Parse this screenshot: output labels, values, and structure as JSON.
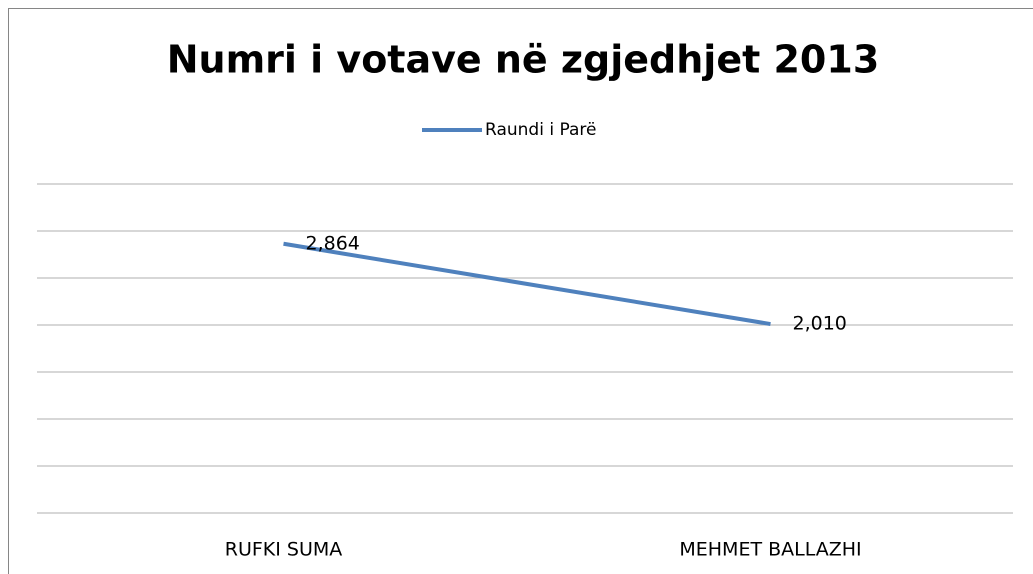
{
  "chart_data": {
    "type": "line",
    "title": "Numri i votave në zgjedhjet 2013",
    "categories": [
      "RUFKI SUMA",
      "MEHMET BALLAZHI"
    ],
    "series": [
      {
        "name": "Raundi i Parë",
        "color": "#4f81bd",
        "values": [
          2864,
          2010
        ],
        "value_labels": [
          "2,864",
          "2,010"
        ]
      }
    ],
    "ylim": [
      0,
      3500
    ],
    "yticks": [
      0,
      500,
      1000,
      1500,
      2000,
      2500,
      3000,
      3500
    ],
    "grid": true,
    "legend": "top"
  }
}
